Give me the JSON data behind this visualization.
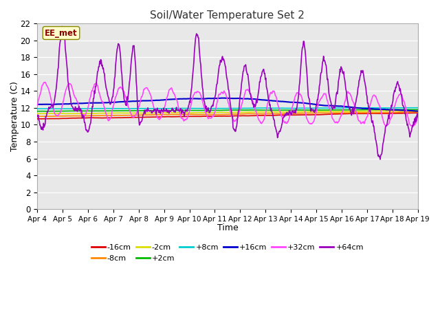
{
  "title": "Soil/Water Temperature Set 2",
  "xlabel": "Time",
  "ylabel": "Temperature (C)",
  "ylim": [
    0,
    22
  ],
  "yticks": [
    0,
    2,
    4,
    6,
    8,
    10,
    12,
    14,
    16,
    18,
    20,
    22
  ],
  "x_labels": [
    "Apr 4",
    "Apr 5",
    "Apr 6",
    "Apr 7",
    "Apr 8",
    "Apr 9",
    "Apr 10",
    "Apr 11",
    "Apr 12",
    "Apr 13",
    "Apr 14",
    "Apr 15",
    "Apr 16",
    "Apr 17",
    "Apr 18",
    "Apr 19"
  ],
  "n_points": 720,
  "series_colors": {
    "-16cm": "#dd0000",
    "-8cm": "#ff8800",
    "-2cm": "#dddd00",
    "+2cm": "#00bb00",
    "+8cm": "#00cccc",
    "+16cm": "#0000cc",
    "+32cm": "#ff44ff",
    "+64cm": "#9900bb"
  },
  "watermark_text": "EE_met",
  "watermark_color": "#8B0000",
  "watermark_bg": "#ffffcc",
  "plot_bg": "#e8e8e8",
  "grid_color": "#ffffff"
}
